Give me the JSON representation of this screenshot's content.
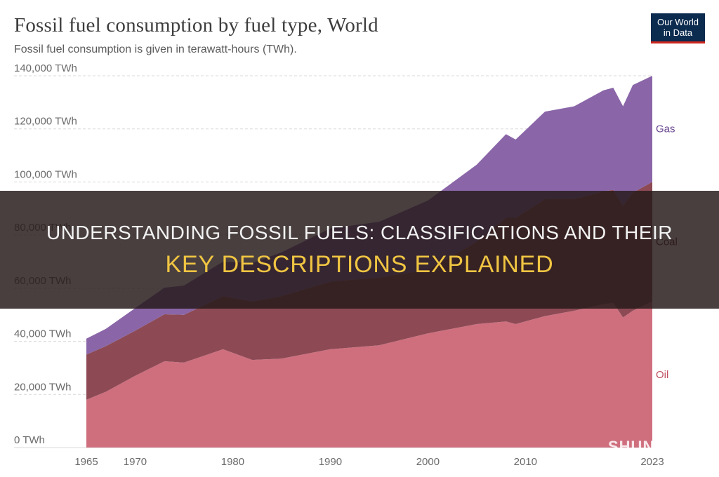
{
  "header": {
    "title": "Fossil fuel consumption by fuel type, World",
    "subtitle": "Fossil fuel consumption is given in terawatt-hours (TWh).",
    "logo_line1": "Our World",
    "logo_line2": "in Data"
  },
  "banner": {
    "line1": "UNDERSTANDING FOSSIL FUELS: CLASSIFICATIONS AND THEIR",
    "line2": "KEY DESCRIPTIONS EXPLAINED"
  },
  "watermark": "SHUN",
  "chart_data": {
    "type": "area",
    "stacked": true,
    "title": "Fossil fuel consumption by fuel type, World",
    "subtitle": "Fossil fuel consumption is given in terawatt-hours (TWh).",
    "xlim": [
      1965,
      2023
    ],
    "ylim": [
      0,
      140000
    ],
    "y_ticks": [
      0,
      20000,
      40000,
      60000,
      80000,
      100000,
      120000,
      140000
    ],
    "y_tick_labels": [
      "0 TWh",
      "20,000 TWh",
      "40,000 TWh",
      "60,000 TWh",
      "80,000 TWh",
      "100,000 TWh",
      "120,000 TWh",
      "140,000 TWh"
    ],
    "x_ticks": [
      1965,
      1970,
      1980,
      1990,
      2000,
      2010,
      2023
    ],
    "x_tick_labels": [
      "1965",
      "1970",
      "1980",
      "1990",
      "2000",
      "2010",
      "2023"
    ],
    "grid": "horizontal dashed",
    "legend": "inline labels at right end",
    "x": [
      1965,
      1967,
      1970,
      1973,
      1975,
      1979,
      1982,
      1985,
      1990,
      1995,
      2000,
      2005,
      2008,
      2009,
      2012,
      2015,
      2018,
      2019,
      2020,
      2021,
      2023
    ],
    "series": [
      {
        "name": "Oil",
        "color": "#cf6f7e",
        "values": [
          18000,
          21000,
          27000,
          32500,
          32000,
          37000,
          33000,
          33500,
          37000,
          38500,
          43000,
          46500,
          47500,
          46500,
          49500,
          51500,
          54000,
          54500,
          49000,
          51500,
          55000
        ]
      },
      {
        "name": "Coal",
        "color": "#8d4a55",
        "values": [
          17000,
          17200,
          17000,
          17700,
          18000,
          20000,
          22000,
          23500,
          25500,
          25500,
          24000,
          31000,
          39000,
          40000,
          44000,
          42000,
          42500,
          42500,
          42000,
          44500,
          45000
        ]
      },
      {
        "name": "Gas",
        "color": "#8a66a8",
        "values": [
          6000,
          6500,
          8500,
          10000,
          11000,
          13000,
          14500,
          16500,
          20000,
          21000,
          26000,
          29000,
          31500,
          29500,
          33000,
          35000,
          38000,
          38500,
          37500,
          40500,
          40000
        ]
      }
    ]
  }
}
